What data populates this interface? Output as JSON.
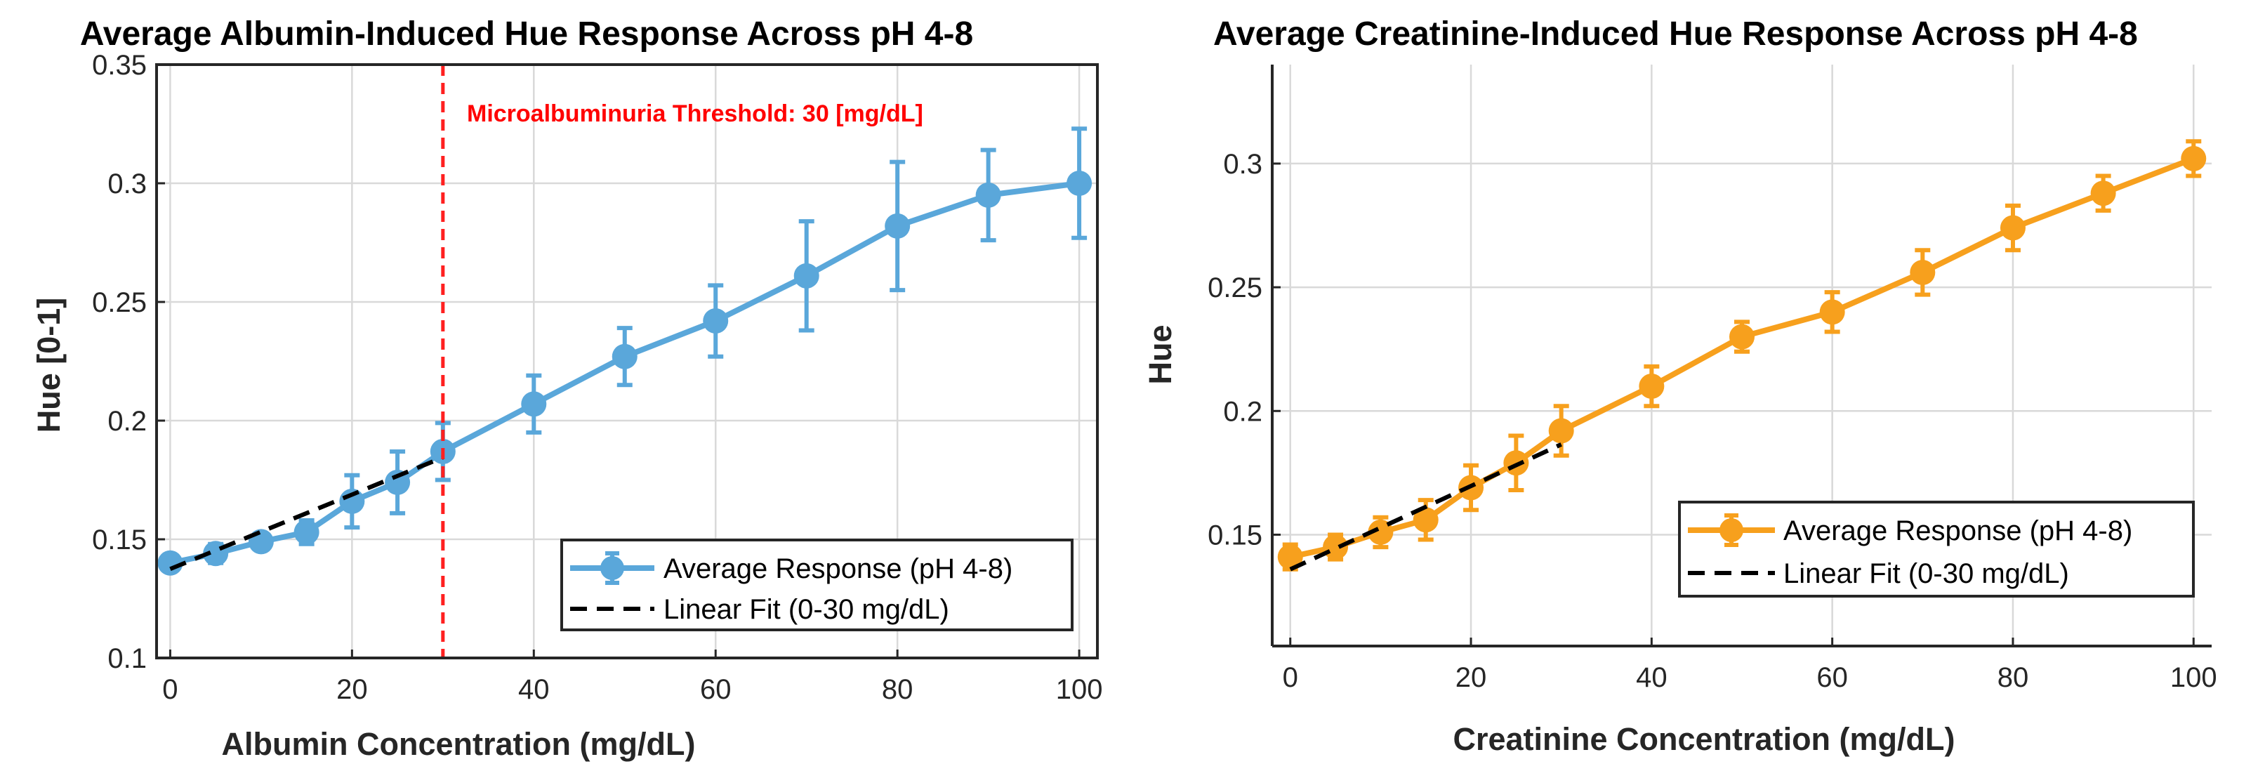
{
  "chart_data": [
    {
      "type": "line",
      "title": "Average Albumin-Induced Hue Response Across pH 4-8",
      "xlabel": "Albumin Concentration (mg/dL)",
      "ylabel": "Hue [0-1]",
      "xlim": [
        -1.5,
        102
      ],
      "ylim": [
        0.1,
        0.35
      ],
      "xticks": [
        0,
        20,
        40,
        60,
        80,
        100
      ],
      "yticks": [
        0.1,
        0.15,
        0.2,
        0.25,
        0.3,
        0.35
      ],
      "xtick_labels": [
        "0",
        "20",
        "40",
        "60",
        "80",
        "100"
      ],
      "ytick_labels": [
        "0.1",
        "0.15",
        "0.2",
        "0.25",
        "0.3",
        "0.35"
      ],
      "grid": true,
      "box": true,
      "legend_position": "bottom-right",
      "colors": {
        "series": "#5aa7da",
        "fit": "#000000",
        "threshold": "#ff2020"
      },
      "series": [
        {
          "name": "Average Response (pH 4-8)",
          "x": [
            0,
            5,
            10,
            15,
            20,
            25,
            30,
            40,
            50,
            60,
            70,
            80,
            90,
            100
          ],
          "y": [
            0.14,
            0.144,
            0.149,
            0.153,
            0.166,
            0.174,
            0.187,
            0.207,
            0.227,
            0.242,
            0.261,
            0.282,
            0.295,
            0.3
          ],
          "error": [
            0.003,
            0.004,
            0.003,
            0.005,
            0.011,
            0.013,
            0.012,
            0.012,
            0.012,
            0.015,
            0.023,
            0.027,
            0.019,
            0.023
          ]
        },
        {
          "name": "Linear Fit (0-30 mg/dL)",
          "style": "dashed",
          "x": [
            0,
            30
          ],
          "y": [
            0.1375,
            0.1845
          ]
        }
      ],
      "vline": {
        "x": 30,
        "label": "Microalbuminuria Threshold: 30 [mg/dL]"
      }
    },
    {
      "type": "line",
      "title": "Average Creatinine-Induced Hue Response Across pH 4-8",
      "xlabel": "Creatinine Concentration (mg/dL)",
      "ylabel": "Hue",
      "xlim": [
        -2,
        102
      ],
      "ylim": [
        0.105,
        0.34
      ],
      "xticks": [
        0,
        20,
        40,
        60,
        80,
        100
      ],
      "yticks": [
        0.15,
        0.2,
        0.25,
        0.3
      ],
      "xtick_labels": [
        "0",
        "20",
        "40",
        "60",
        "80",
        "100"
      ],
      "ytick_labels": [
        "0.15",
        "0.2",
        "0.25",
        "0.3"
      ],
      "grid": true,
      "box": false,
      "legend_position": "right",
      "colors": {
        "series": "#f7a01d",
        "fit": "#000000"
      },
      "series": [
        {
          "name": "Average Response (pH 4-8)",
          "x": [
            0,
            5,
            10,
            15,
            20,
            25,
            30,
            40,
            50,
            60,
            70,
            80,
            90,
            100
          ],
          "y": [
            0.141,
            0.145,
            0.151,
            0.156,
            0.169,
            0.179,
            0.192,
            0.21,
            0.23,
            0.24,
            0.256,
            0.274,
            0.288,
            0.302
          ],
          "error": [
            0.005,
            0.005,
            0.006,
            0.008,
            0.009,
            0.011,
            0.01,
            0.008,
            0.006,
            0.008,
            0.009,
            0.009,
            0.007,
            0.007
          ]
        },
        {
          "name": "Linear Fit (0-30 mg/dL)",
          "style": "dashed",
          "x": [
            0,
            30
          ],
          "y": [
            0.136,
            0.1865
          ]
        }
      ]
    }
  ]
}
